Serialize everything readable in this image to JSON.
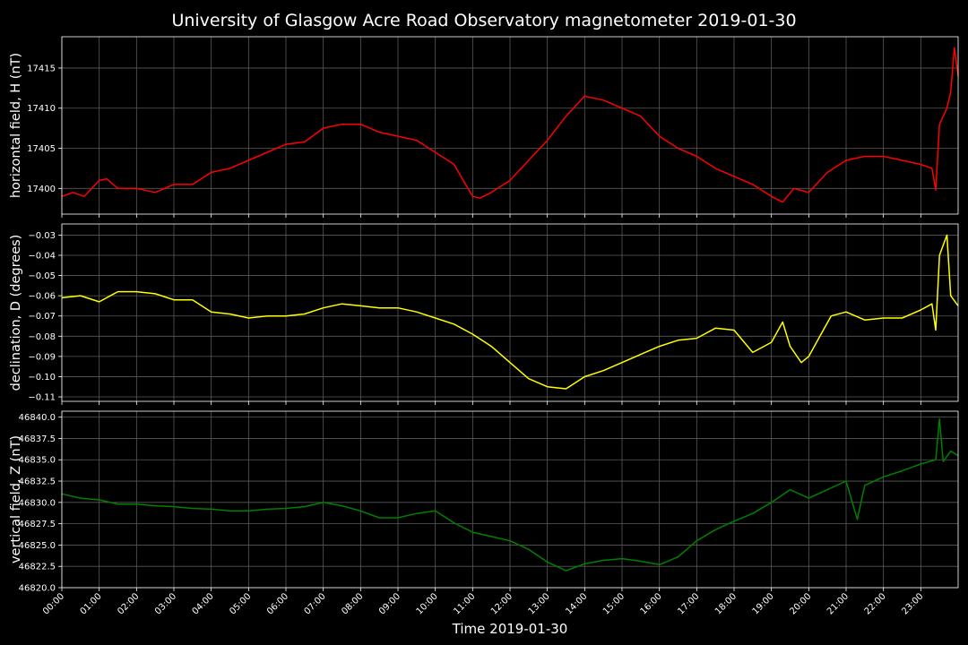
{
  "title": "University of Glasgow Acre Road Observatory magnetometer 2019-01-30",
  "xlabel": "Time 2019-01-30",
  "xticks": [
    "00:00",
    "01:00",
    "02:00",
    "03:00",
    "04:00",
    "05:00",
    "06:00",
    "07:00",
    "08:00",
    "09:00",
    "10:00",
    "11:00",
    "12:00",
    "13:00",
    "14:00",
    "15:00",
    "16:00",
    "17:00",
    "18:00",
    "19:00",
    "20:00",
    "21:00",
    "22:00",
    "23:00"
  ],
  "colors": {
    "background": "#000000",
    "grid": "#5a5a5a",
    "text": "#ffffff",
    "H": "#ff0000",
    "D": "#ffff00",
    "Z": "#008000"
  },
  "chart_data": [
    {
      "type": "line",
      "ylabel": "horizontal field, H (nT)",
      "color": "#ff0000",
      "xlim": [
        0,
        24
      ],
      "ylim": [
        17396.8,
        17418.9
      ],
      "yticks": [
        17400,
        17405,
        17410,
        17415
      ],
      "ytick_labels": [
        "17400",
        "17405",
        "17410",
        "17415"
      ],
      "grid": true,
      "x": [
        0,
        0.3,
        0.6,
        1.0,
        1.2,
        1.5,
        2.0,
        2.5,
        3.0,
        3.5,
        4.0,
        4.5,
        5.0,
        5.5,
        6.0,
        6.5,
        7.0,
        7.5,
        8.0,
        8.5,
        9.0,
        9.5,
        10.0,
        10.5,
        11.0,
        11.2,
        11.5,
        12.0,
        12.5,
        13.0,
        13.5,
        14.0,
        14.5,
        15.0,
        15.5,
        16.0,
        16.5,
        17.0,
        17.5,
        18.0,
        18.5,
        19.0,
        19.3,
        19.6,
        20.0,
        20.5,
        21.0,
        21.5,
        22.0,
        22.5,
        23.0,
        23.3,
        23.4,
        23.5,
        23.7,
        23.8,
        23.9,
        24.0
      ],
      "y": [
        17399,
        17399.5,
        17399,
        17401,
        17401.2,
        17400,
        17400,
        17399.5,
        17400.5,
        17400.5,
        17402,
        17402.5,
        17403.5,
        17404.5,
        17405.5,
        17405.8,
        17407.5,
        17408,
        17408,
        17407,
        17406.5,
        17406,
        17404.5,
        17403,
        17399,
        17398.8,
        17399.5,
        17401,
        17403.5,
        17406,
        17409,
        17411.5,
        17411,
        17410,
        17409,
        17406.5,
        17405,
        17404,
        17402.5,
        17401.5,
        17400.5,
        17399,
        17398.3,
        17400,
        17399.5,
        17402,
        17403.5,
        17404,
        17404,
        17403.5,
        17403,
        17402.5,
        17399.8,
        17408,
        17410,
        17412,
        17417.5,
        17414
      ]
    },
    {
      "type": "line",
      "ylabel": "declination, D (degrees)",
      "color": "#ffff00",
      "xlim": [
        0,
        24
      ],
      "ylim": [
        -0.1122,
        -0.0245
      ],
      "yticks": [
        -0.11,
        -0.1,
        -0.09,
        -0.08,
        -0.07,
        -0.06,
        -0.05,
        -0.04,
        -0.03
      ],
      "ytick_labels": [
        "−0.11",
        "−0.10",
        "−0.09",
        "−0.08",
        "−0.07",
        "−0.06",
        "−0.05",
        "−0.04",
        "−0.03"
      ],
      "grid": true,
      "x": [
        0,
        0.5,
        1.0,
        1.5,
        2.0,
        2.5,
        3.0,
        3.5,
        4.0,
        4.5,
        5.0,
        5.5,
        6.0,
        6.5,
        7.0,
        7.5,
        8.0,
        8.5,
        9.0,
        9.5,
        10.0,
        10.5,
        11.0,
        11.5,
        12.0,
        12.5,
        13.0,
        13.5,
        14.0,
        14.5,
        15.0,
        15.5,
        16.0,
        16.5,
        17.0,
        17.5,
        18.0,
        18.5,
        19.0,
        19.3,
        19.5,
        19.8,
        20.0,
        20.3,
        20.6,
        21.0,
        21.5,
        22.0,
        22.5,
        23.0,
        23.3,
        23.4,
        23.5,
        23.6,
        23.7,
        23.8,
        24.0
      ],
      "y": [
        -0.061,
        -0.06,
        -0.063,
        -0.058,
        -0.058,
        -0.059,
        -0.062,
        -0.062,
        -0.068,
        -0.069,
        -0.071,
        -0.07,
        -0.07,
        -0.069,
        -0.066,
        -0.064,
        -0.065,
        -0.066,
        -0.066,
        -0.068,
        -0.071,
        -0.074,
        -0.079,
        -0.085,
        -0.093,
        -0.101,
        -0.105,
        -0.106,
        -0.1,
        -0.097,
        -0.093,
        -0.089,
        -0.085,
        -0.082,
        -0.081,
        -0.076,
        -0.077,
        -0.088,
        -0.083,
        -0.073,
        -0.085,
        -0.093,
        -0.09,
        -0.08,
        -0.07,
        -0.068,
        -0.072,
        -0.071,
        -0.071,
        -0.067,
        -0.064,
        -0.077,
        -0.04,
        -0.035,
        -0.03,
        -0.06,
        -0.065
      ]
    },
    {
      "type": "line",
      "ylabel": "vertical field, Z (nT)",
      "color": "#008000",
      "xlim": [
        0,
        24
      ],
      "ylim": [
        46820.0,
        46840.7
      ],
      "yticks": [
        46820.0,
        46822.5,
        46825.0,
        46827.5,
        46830.0,
        46832.5,
        46835.0,
        46837.5,
        46840.0
      ],
      "ytick_labels": [
        "46820.0",
        "46822.5",
        "46825.0",
        "46827.5",
        "46830.0",
        "46832.5",
        "46835.0",
        "46837.5",
        "46840.0"
      ],
      "grid": true,
      "x": [
        0,
        0.5,
        1.0,
        1.5,
        2.0,
        2.5,
        3.0,
        3.5,
        4.0,
        4.5,
        5.0,
        5.5,
        6.0,
        6.5,
        7.0,
        7.5,
        8.0,
        8.5,
        9.0,
        9.5,
        10.0,
        10.5,
        11.0,
        11.5,
        12.0,
        12.5,
        13.0,
        13.5,
        14.0,
        14.5,
        15.0,
        15.5,
        16.0,
        16.5,
        17.0,
        17.5,
        18.0,
        18.5,
        19.0,
        19.5,
        20.0,
        20.5,
        21.0,
        21.3,
        21.5,
        22.0,
        22.5,
        23.0,
        23.4,
        23.5,
        23.6,
        23.8,
        24.0
      ],
      "y": [
        46831,
        46830.5,
        46830.3,
        46829.8,
        46829.8,
        46829.6,
        46829.5,
        46829.3,
        46829.2,
        46829,
        46829,
        46829.2,
        46829.3,
        46829.5,
        46830,
        46829.6,
        46829,
        46828.2,
        46828.2,
        46828.7,
        46829,
        46827.6,
        46826.5,
        46826,
        46825.5,
        46824.5,
        46823,
        46822,
        46822.8,
        46823.2,
        46823.4,
        46823.1,
        46822.7,
        46823.6,
        46825.5,
        46826.8,
        46827.8,
        46828.7,
        46830,
        46831.5,
        46830.5,
        46831.5,
        46832.5,
        46828,
        46832,
        46833,
        46833.7,
        46834.5,
        46835,
        46839.8,
        46834.8,
        46836,
        46835.5
      ]
    }
  ]
}
